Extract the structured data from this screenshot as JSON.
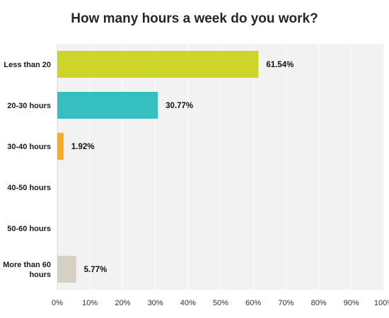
{
  "chart_data": {
    "type": "bar",
    "orientation": "horizontal",
    "title": "How many hours a week do you work?",
    "categories": [
      "Less than 20",
      "20-30 hours",
      "30-40 hours",
      "40-50 hours",
      "50-60 hours",
      "More than 60 hours"
    ],
    "values": [
      61.54,
      30.77,
      1.92,
      0,
      0,
      5.77
    ],
    "data_labels": [
      "61.54%",
      "30.77%",
      "1.92%",
      "",
      "",
      "5.77%"
    ],
    "colors": [
      "#cdd52a",
      "#36bfc0",
      "#f4ad24",
      "#cccccc",
      "#cccccc",
      "#d4d1c2"
    ],
    "x_ticks": [
      "0%",
      "10%",
      "20%",
      "30%",
      "40%",
      "50%",
      "60%",
      "70%",
      "80%",
      "90%",
      "100%"
    ],
    "xlim": [
      0,
      100
    ],
    "unit": "%",
    "grid": true,
    "legend": "none"
  }
}
